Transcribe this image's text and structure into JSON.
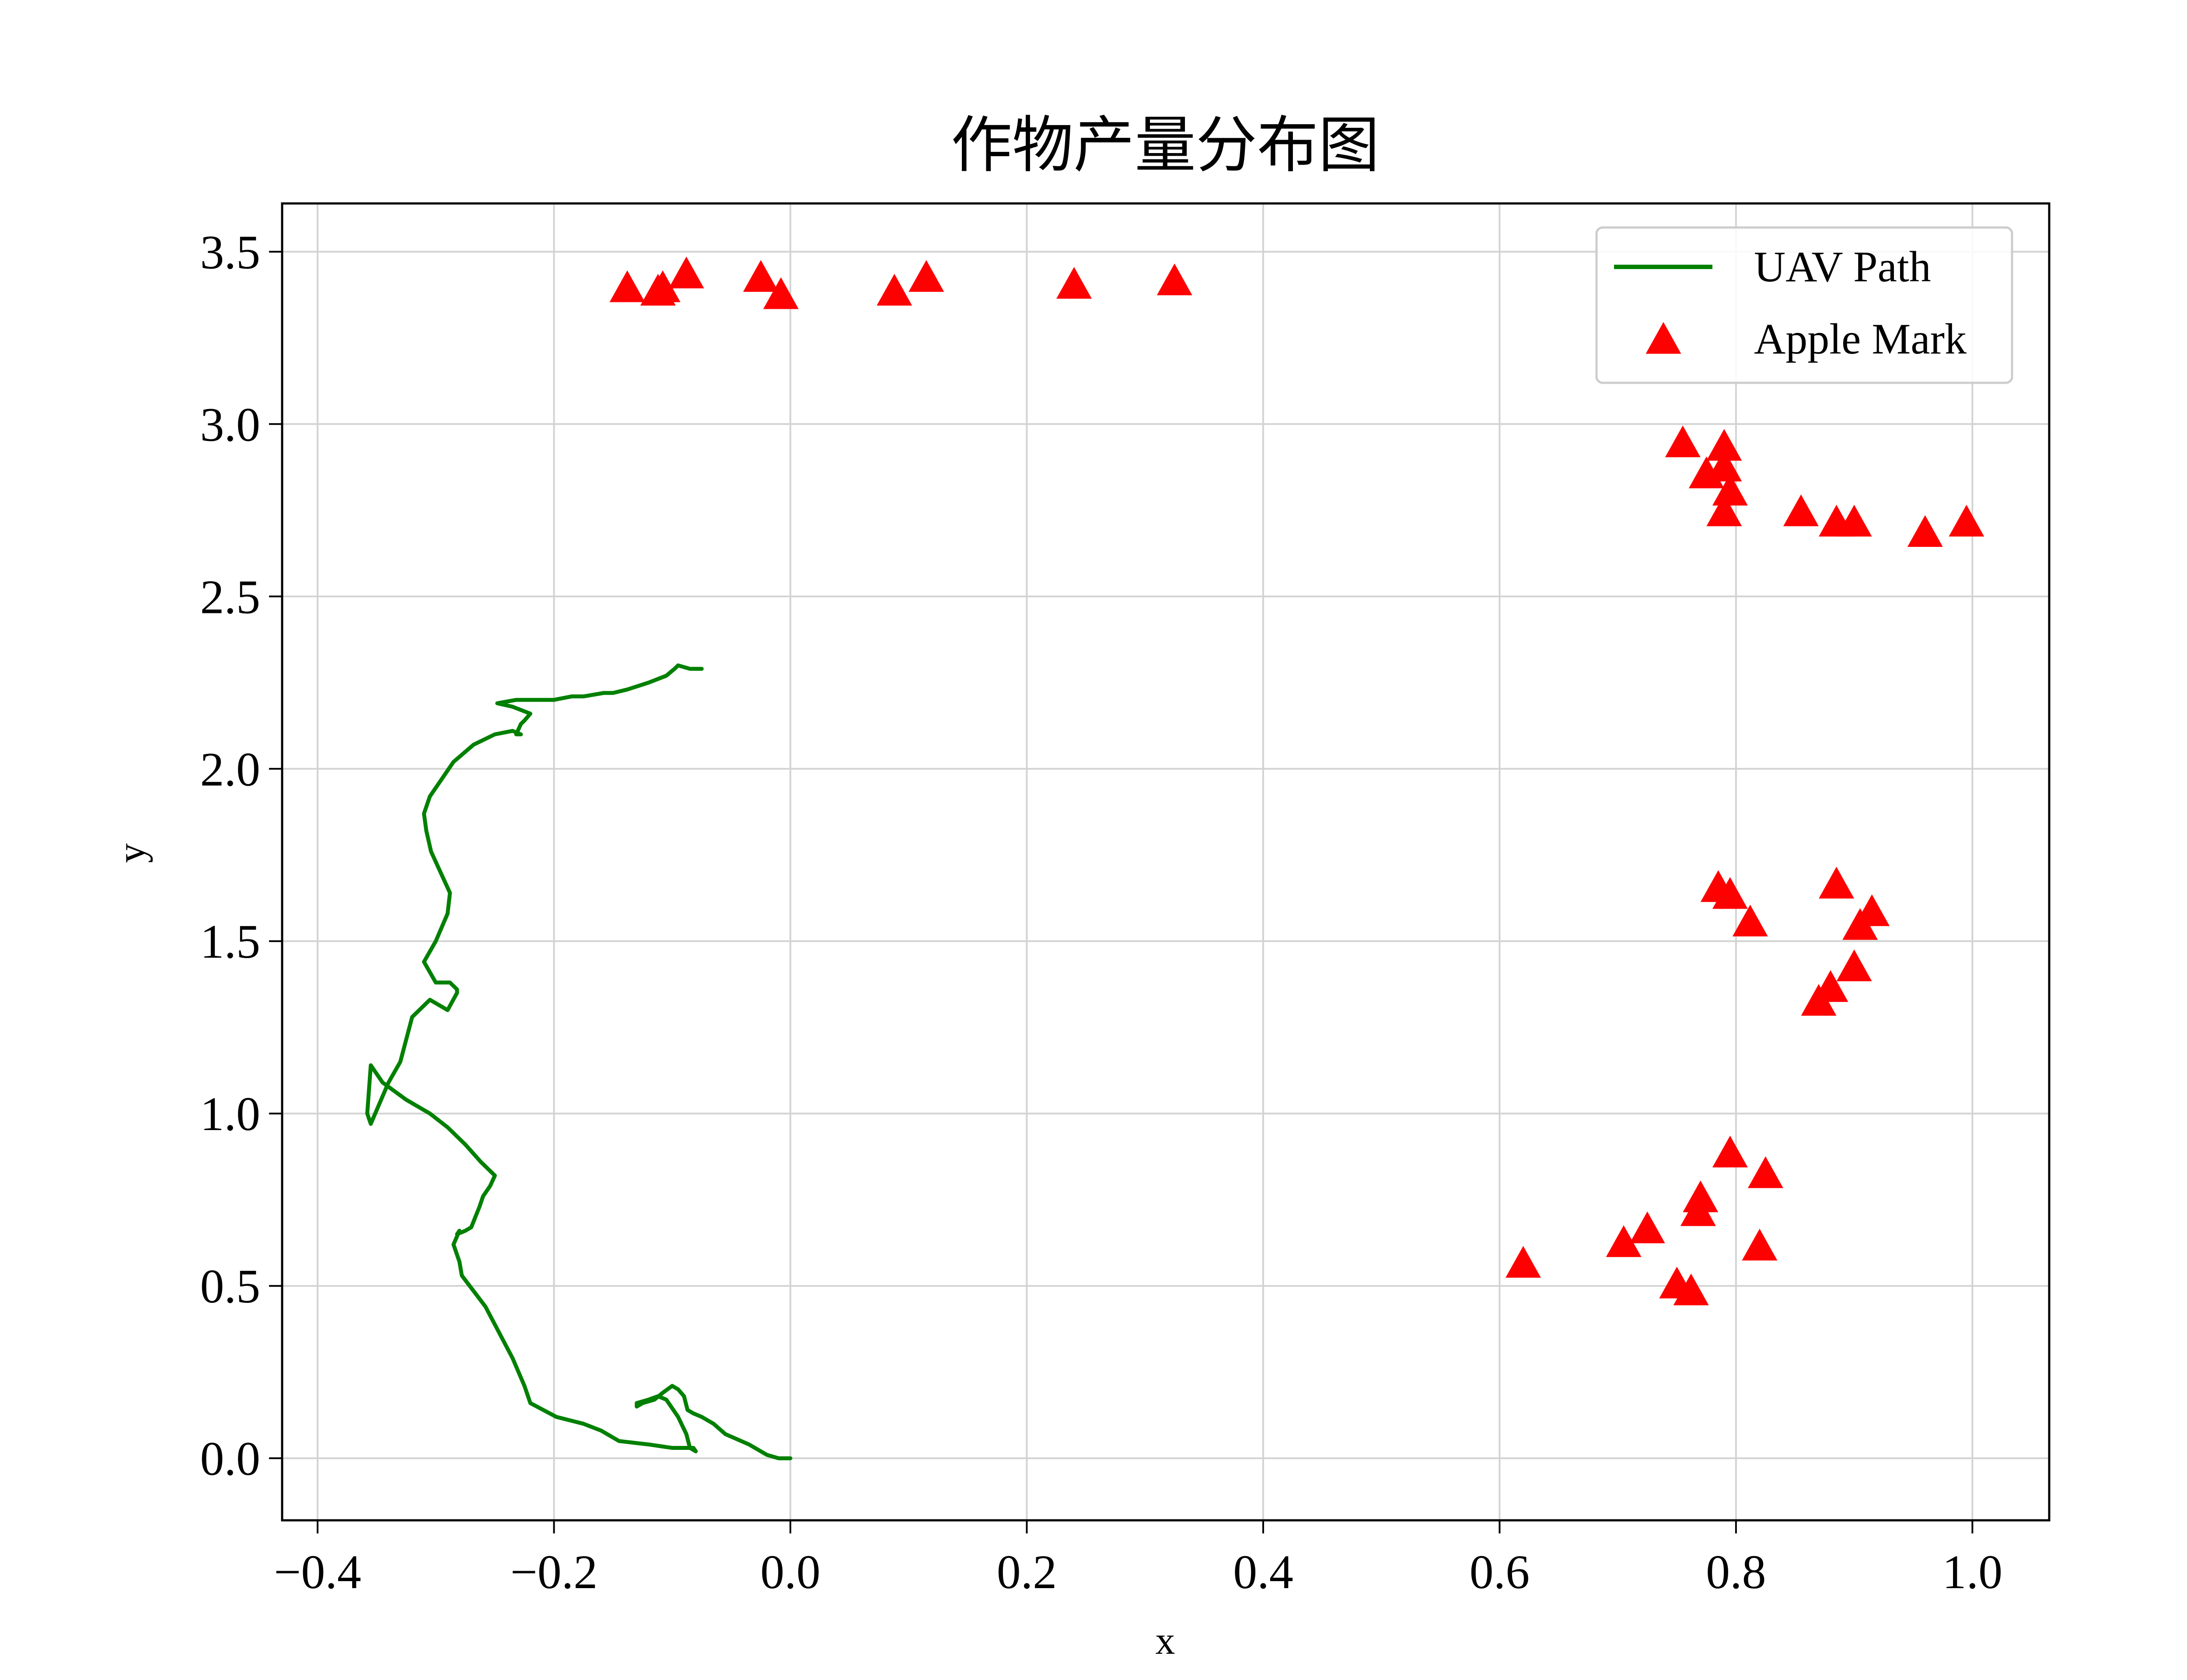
{
  "chart_data": {
    "type": "scatter",
    "title": "作物产量分布图",
    "xlabel": "x",
    "ylabel": "y",
    "xlim": [
      -0.43,
      1.065
    ],
    "ylim": [
      -0.18,
      3.64
    ],
    "xticks": [
      -0.4,
      -0.2,
      0.0,
      0.2,
      0.4,
      0.6,
      0.8,
      1.0
    ],
    "xtick_labels": [
      "−0.4",
      "−0.2",
      "0.0",
      "0.2",
      "0.4",
      "0.6",
      "0.8",
      "1.0"
    ],
    "yticks": [
      0.0,
      0.5,
      1.0,
      1.5,
      2.0,
      2.5,
      3.0,
      3.5
    ],
    "ytick_labels": [
      "0.0",
      "0.5",
      "1.0",
      "1.5",
      "2.0",
      "2.5",
      "3.0",
      "3.5"
    ],
    "grid": true,
    "legend_position": "top-right",
    "colors": {
      "path": "#008000",
      "marker": "#ff0000",
      "grid": "#d3d3d3",
      "axes": "#000000"
    },
    "series": [
      {
        "name": "UAV Path",
        "kind": "line",
        "x": [
          0.0,
          -0.01,
          -0.02,
          -0.035,
          -0.055,
          -0.065,
          -0.075,
          -0.082,
          -0.087,
          -0.09,
          -0.095,
          -0.1,
          -0.108,
          -0.115,
          -0.125,
          -0.13,
          -0.13,
          -0.12,
          -0.112,
          -0.105,
          -0.095,
          -0.088,
          -0.085,
          -0.08,
          -0.082,
          -0.09,
          -0.1,
          -0.12,
          -0.145,
          -0.16,
          -0.175,
          -0.198,
          -0.22,
          -0.225,
          -0.235,
          -0.258,
          -0.278,
          -0.28,
          -0.285,
          -0.28,
          -0.282,
          -0.275,
          -0.27,
          -0.263,
          -0.26,
          -0.254,
          -0.25,
          -0.262,
          -0.275,
          -0.29,
          -0.305,
          -0.325,
          -0.345,
          -0.355,
          -0.358,
          -0.355,
          -0.34,
          -0.33,
          -0.32,
          -0.305,
          -0.295,
          -0.29,
          -0.282,
          -0.282,
          -0.288,
          -0.3,
          -0.31,
          -0.3,
          -0.29,
          -0.288,
          -0.296,
          -0.304,
          -0.308,
          -0.31,
          -0.305,
          -0.295,
          -0.285,
          -0.268,
          -0.25,
          -0.235,
          -0.228,
          -0.232,
          -0.228,
          -0.225,
          -0.22,
          -0.235,
          -0.248,
          -0.232,
          -0.215,
          -0.2,
          -0.185,
          -0.175,
          -0.158,
          -0.15,
          -0.138,
          -0.12,
          -0.105,
          -0.098,
          -0.095,
          -0.085,
          -0.075
        ],
        "y": [
          0.0,
          0.0,
          0.01,
          0.04,
          0.07,
          0.1,
          0.12,
          0.13,
          0.14,
          0.18,
          0.2,
          0.21,
          0.19,
          0.17,
          0.16,
          0.15,
          0.16,
          0.17,
          0.18,
          0.17,
          0.12,
          0.07,
          0.03,
          0.02,
          0.03,
          0.03,
          0.03,
          0.04,
          0.05,
          0.08,
          0.1,
          0.12,
          0.16,
          0.21,
          0.29,
          0.44,
          0.53,
          0.57,
          0.62,
          0.66,
          0.65,
          0.66,
          0.67,
          0.73,
          0.76,
          0.79,
          0.82,
          0.86,
          0.91,
          0.96,
          1.0,
          1.04,
          1.09,
          1.14,
          1.0,
          0.97,
          1.09,
          1.15,
          1.28,
          1.33,
          1.31,
          1.3,
          1.35,
          1.36,
          1.38,
          1.38,
          1.44,
          1.5,
          1.58,
          1.64,
          1.7,
          1.76,
          1.82,
          1.87,
          1.92,
          1.97,
          2.02,
          2.07,
          2.1,
          2.11,
          2.1,
          2.1,
          2.13,
          2.14,
          2.16,
          2.18,
          2.19,
          2.2,
          2.2,
          2.2,
          2.21,
          2.21,
          2.22,
          2.22,
          2.23,
          2.25,
          2.27,
          2.29,
          2.3,
          2.29,
          2.29
        ]
      },
      {
        "name": "Apple Mark",
        "kind": "scatter",
        "marker": "triangle-up",
        "x": [
          -0.138,
          -0.112,
          -0.108,
          -0.088,
          -0.025,
          -0.008,
          0.088,
          0.115,
          0.24,
          0.325,
          0.755,
          0.79,
          0.775,
          0.79,
          0.795,
          0.79,
          0.855,
          0.885,
          0.9,
          0.96,
          0.995,
          0.785,
          0.795,
          0.812,
          0.885,
          0.905,
          0.915,
          0.9,
          0.88,
          0.87,
          0.795,
          0.825,
          0.77,
          0.768,
          0.725,
          0.705,
          0.82,
          0.75,
          0.762,
          0.62
        ],
        "y": [
          3.39,
          3.38,
          3.39,
          3.43,
          3.42,
          3.37,
          3.38,
          3.42,
          3.4,
          3.41,
          2.94,
          2.93,
          2.85,
          2.87,
          2.8,
          2.74,
          2.74,
          2.71,
          2.71,
          2.68,
          2.71,
          1.65,
          1.63,
          1.55,
          1.66,
          1.54,
          1.58,
          1.42,
          1.36,
          1.32,
          0.88,
          0.82,
          0.75,
          0.71,
          0.66,
          0.62,
          0.61,
          0.5,
          0.48,
          0.56
        ]
      }
    ]
  }
}
